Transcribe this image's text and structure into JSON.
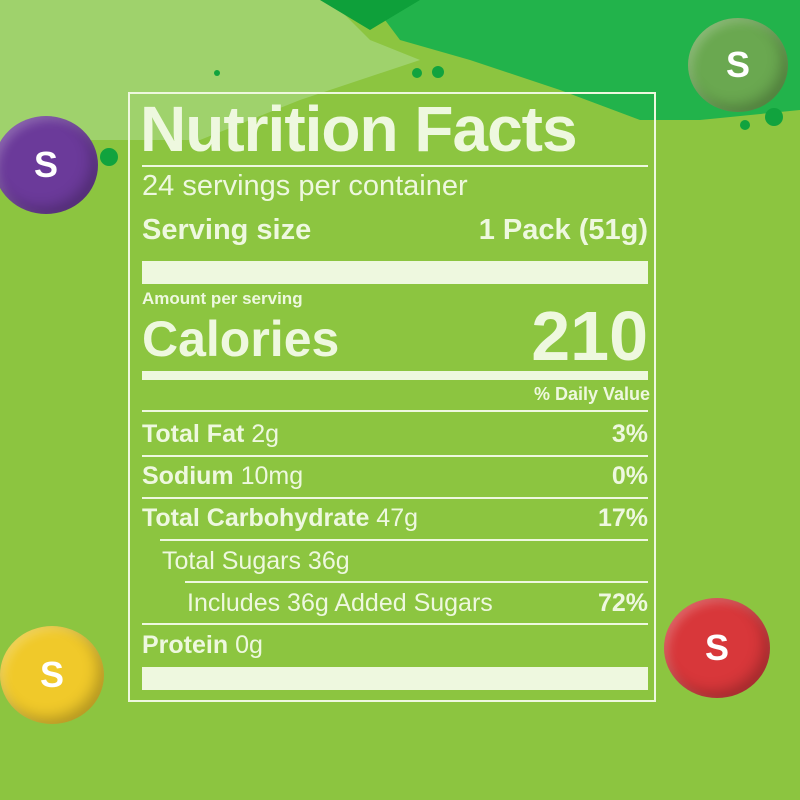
{
  "colors": {
    "background": "#8cc540",
    "text": "#eef8df",
    "accent_green": "#22b34b"
  },
  "candies": [
    {
      "color": "purple",
      "letter": "S"
    },
    {
      "color": "green",
      "letter": "S"
    },
    {
      "color": "yellow",
      "letter": "S"
    },
    {
      "color": "red",
      "letter": "S"
    }
  ],
  "label": {
    "title": "Nutrition Facts",
    "servings": "24 servings per container",
    "serving_size_label": "Serving size",
    "serving_size_value": "1 Pack (51g)",
    "amount_per_serving": "Amount per serving",
    "calories_label": "Calories",
    "calories_value": "210",
    "daily_value_header": "% Daily Value",
    "rows": [
      {
        "name": "Total Fat",
        "amount": "2g",
        "dv": "3%"
      },
      {
        "name": "Sodium",
        "amount": "10mg",
        "dv": "0%"
      },
      {
        "name": "Total Carbohydrate",
        "amount": "47g",
        "dv": "17%"
      },
      {
        "name": "Total Sugars 36g",
        "amount": "",
        "dv": ""
      },
      {
        "name": "Includes 36g Added Sugars",
        "amount": "",
        "dv": "72%"
      },
      {
        "name": "Protein",
        "amount": "0g",
        "dv": ""
      }
    ]
  }
}
